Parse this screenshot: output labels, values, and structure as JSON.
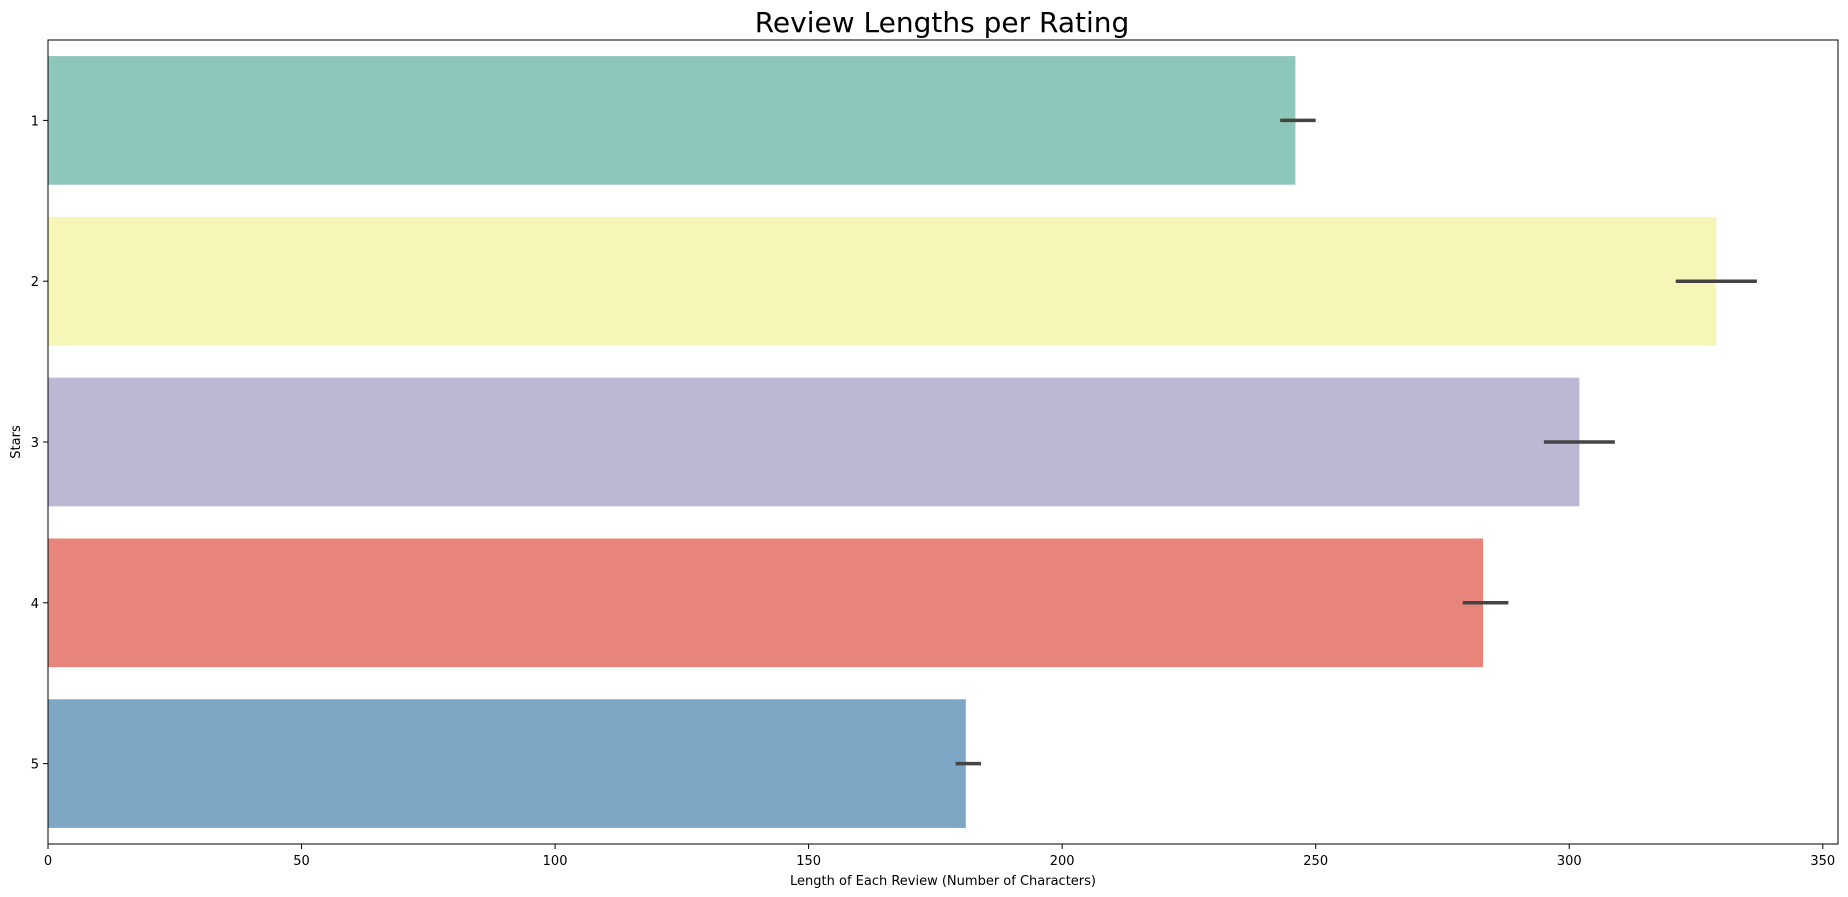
{
  "chart_data": {
    "type": "bar",
    "orientation": "horizontal",
    "title": "Review Lengths per Rating",
    "xlabel": "Length of Each Review (Number of Characters)",
    "ylabel": "Stars",
    "categories": [
      "1",
      "2",
      "3",
      "4",
      "5"
    ],
    "values": [
      246,
      329,
      302,
      283,
      181
    ],
    "error_bars": [
      [
        243,
        250
      ],
      [
        321,
        337
      ],
      [
        295,
        309
      ],
      [
        279,
        288
      ],
      [
        179,
        184
      ]
    ],
    "colors": [
      "#8dc7bb",
      "#f6f6b8",
      "#bcb8d3",
      "#e8857b",
      "#7ea7c6"
    ],
    "error_bar_color": "#444444",
    "xlim": [
      0,
      353
    ],
    "xticks": [
      0,
      50,
      100,
      150,
      200,
      250,
      300,
      350
    ],
    "grid": false,
    "legend": false
  }
}
